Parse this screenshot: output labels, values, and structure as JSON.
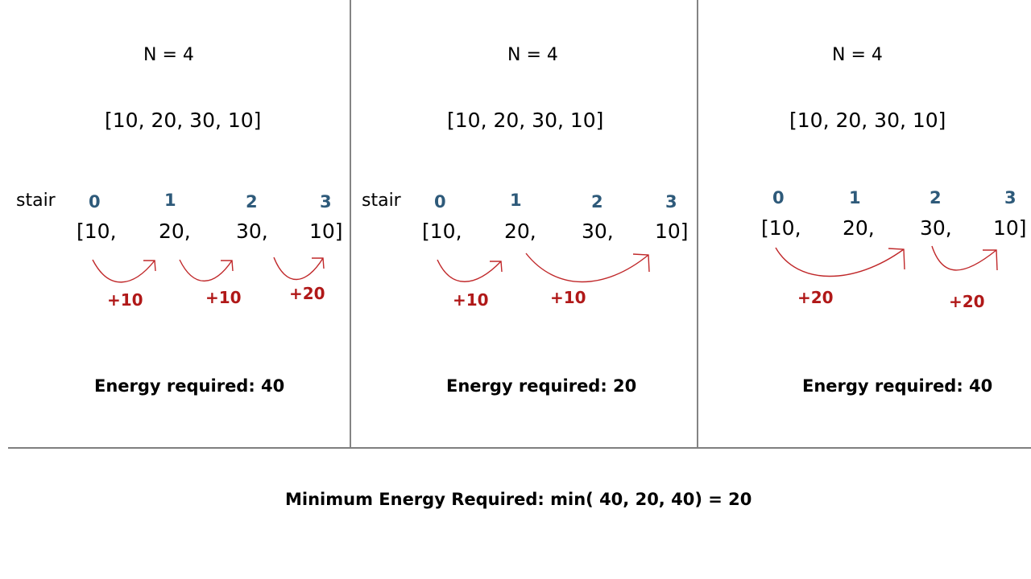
{
  "colors": {
    "index": "#2e5a7a",
    "cost": "#b01818",
    "text": "#000000",
    "divider": "#333333"
  },
  "panels": [
    {
      "title": "N = 4",
      "array": "[10, 20, 30, 10]",
      "stair_label": "stair",
      "indices": [
        "0",
        "1",
        "2",
        "3"
      ],
      "elements": [
        "[10,",
        "20,",
        "30,",
        "10]"
      ],
      "jumps": [
        {
          "from": 0,
          "to": 1,
          "cost": "+10"
        },
        {
          "from": 1,
          "to": 2,
          "cost": "+10"
        },
        {
          "from": 2,
          "to": 3,
          "cost": "+20"
        }
      ],
      "energy": "Energy required: 40"
    },
    {
      "title": "N = 4",
      "array": "[10, 20, 30, 10]",
      "stair_label": "stair",
      "indices": [
        "0",
        "1",
        "2",
        "3"
      ],
      "elements": [
        "[10,",
        "20,",
        "30,",
        "10]"
      ],
      "jumps": [
        {
          "from": 0,
          "to": 1,
          "cost": "+10"
        },
        {
          "from": 1,
          "to": 3,
          "cost": "+10"
        }
      ],
      "energy": "Energy required: 20"
    },
    {
      "title": "N = 4",
      "array": "[10, 20, 30, 10]",
      "stair_label": "",
      "indices": [
        "0",
        "1",
        "2",
        "3"
      ],
      "elements": [
        "[10,",
        "20,",
        "30,",
        "10]"
      ],
      "jumps": [
        {
          "from": 0,
          "to": 2,
          "cost": "+20"
        },
        {
          "from": 2,
          "to": 3,
          "cost": "+20"
        }
      ],
      "energy": "Energy required: 40"
    }
  ],
  "summary": "Minimum Energy Required: min( 40, 20, 40) = 20"
}
